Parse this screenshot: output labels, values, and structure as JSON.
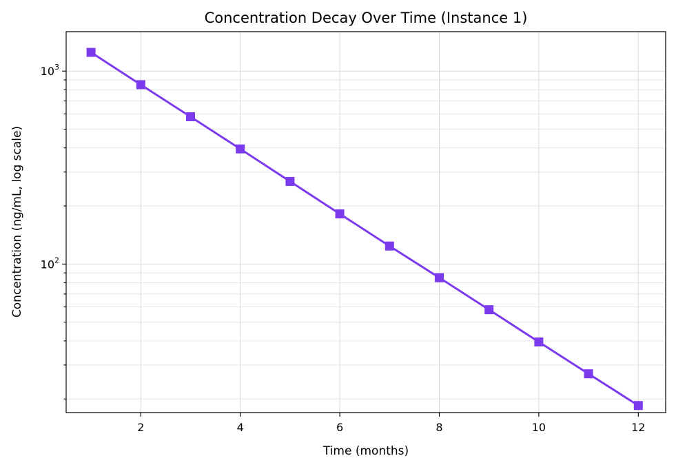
{
  "chart_data": {
    "type": "line",
    "title": "Concentration Decay Over Time (Instance 1)",
    "xlabel": "Time (months)",
    "ylabel": "Concentration (ng/mL, log scale)",
    "yscale": "log",
    "xlim": [
      0.5,
      12.55
    ],
    "ylim": [
      17,
      1600
    ],
    "xticks": [
      2,
      4,
      6,
      8,
      10,
      12
    ],
    "yticks": [
      {
        "value": 100,
        "base": "10",
        "exp": "2"
      },
      {
        "value": 1000,
        "base": "10",
        "exp": "3"
      }
    ],
    "grid": true,
    "color": "#7c3aed",
    "marker": "square",
    "x": [
      1,
      2,
      3,
      4,
      5,
      6,
      7,
      8,
      9,
      10,
      11,
      12
    ],
    "series": [
      {
        "values": [
          1250,
          850,
          580,
          395,
          268,
          182,
          124,
          85,
          58,
          39.5,
          27,
          18.5
        ]
      }
    ]
  }
}
